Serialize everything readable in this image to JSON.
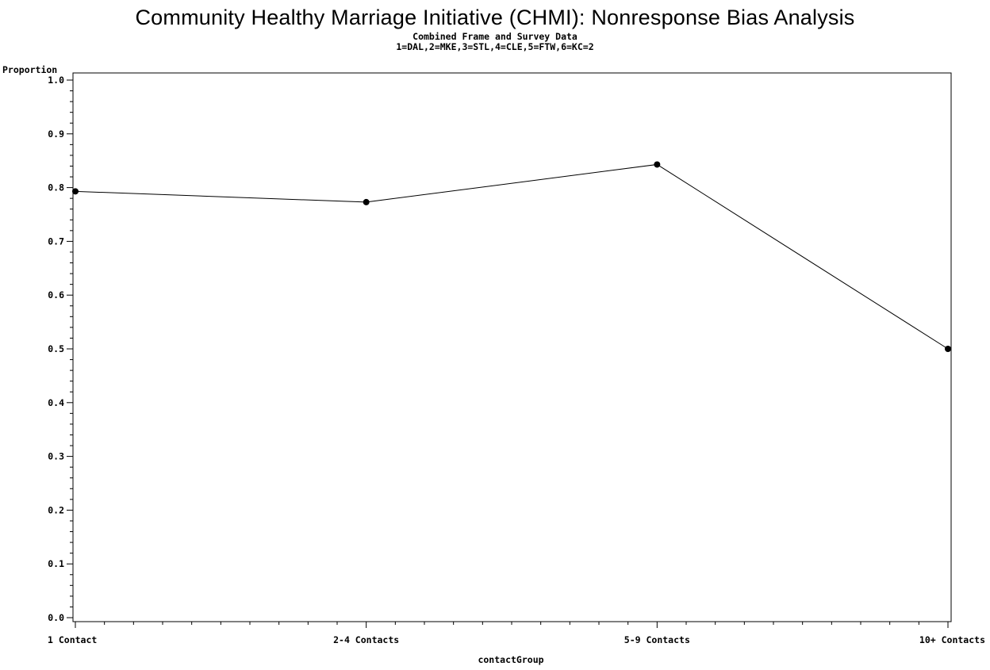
{
  "chart_data": {
    "type": "line",
    "title": "Community Healthy Marriage Initiative (CHMI): Nonresponse Bias Analysis",
    "subtitles": [
      "Combined Frame and Survey Data",
      "1=DAL,2=MKE,3=STL,4=CLE,5=FTW,6=KC=2"
    ],
    "xlabel": "contactGroup",
    "ylabel": "Proportion",
    "categories": [
      "1 Contact",
      "2-4 Contacts",
      "5-9 Contacts",
      "10+ Contacts"
    ],
    "values": [
      0.793,
      0.773,
      0.843,
      0.5
    ],
    "ylim": [
      0.0,
      1.0
    ],
    "y_ticks": [
      "0.0",
      "0.1",
      "0.2",
      "0.3",
      "0.4",
      "0.5",
      "0.6",
      "0.7",
      "0.8",
      "0.9",
      "1.0"
    ],
    "grid": false,
    "line_color": "#000000",
    "marker": "filled-circle"
  }
}
